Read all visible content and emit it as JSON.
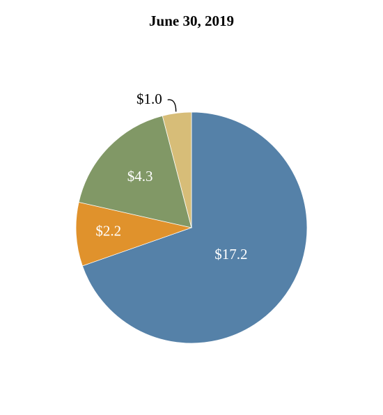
{
  "chart_data": {
    "type": "pie",
    "title": "June 30, 2019",
    "start_angle_deg": 0,
    "direction": "clockwise",
    "slices": [
      {
        "label": "$17.2",
        "value": 17.2,
        "color": "#5581a8",
        "label_color": "#ffffff"
      },
      {
        "label": "$2.2",
        "value": 2.2,
        "color": "#e0922c",
        "label_color": "#ffffff"
      },
      {
        "label": "$4.3",
        "value": 4.3,
        "color": "#819866",
        "label_color": "#ffffff"
      },
      {
        "label": "$1.0",
        "value": 1.0,
        "color": "#d7bd78",
        "label_color": "#000000"
      }
    ]
  }
}
